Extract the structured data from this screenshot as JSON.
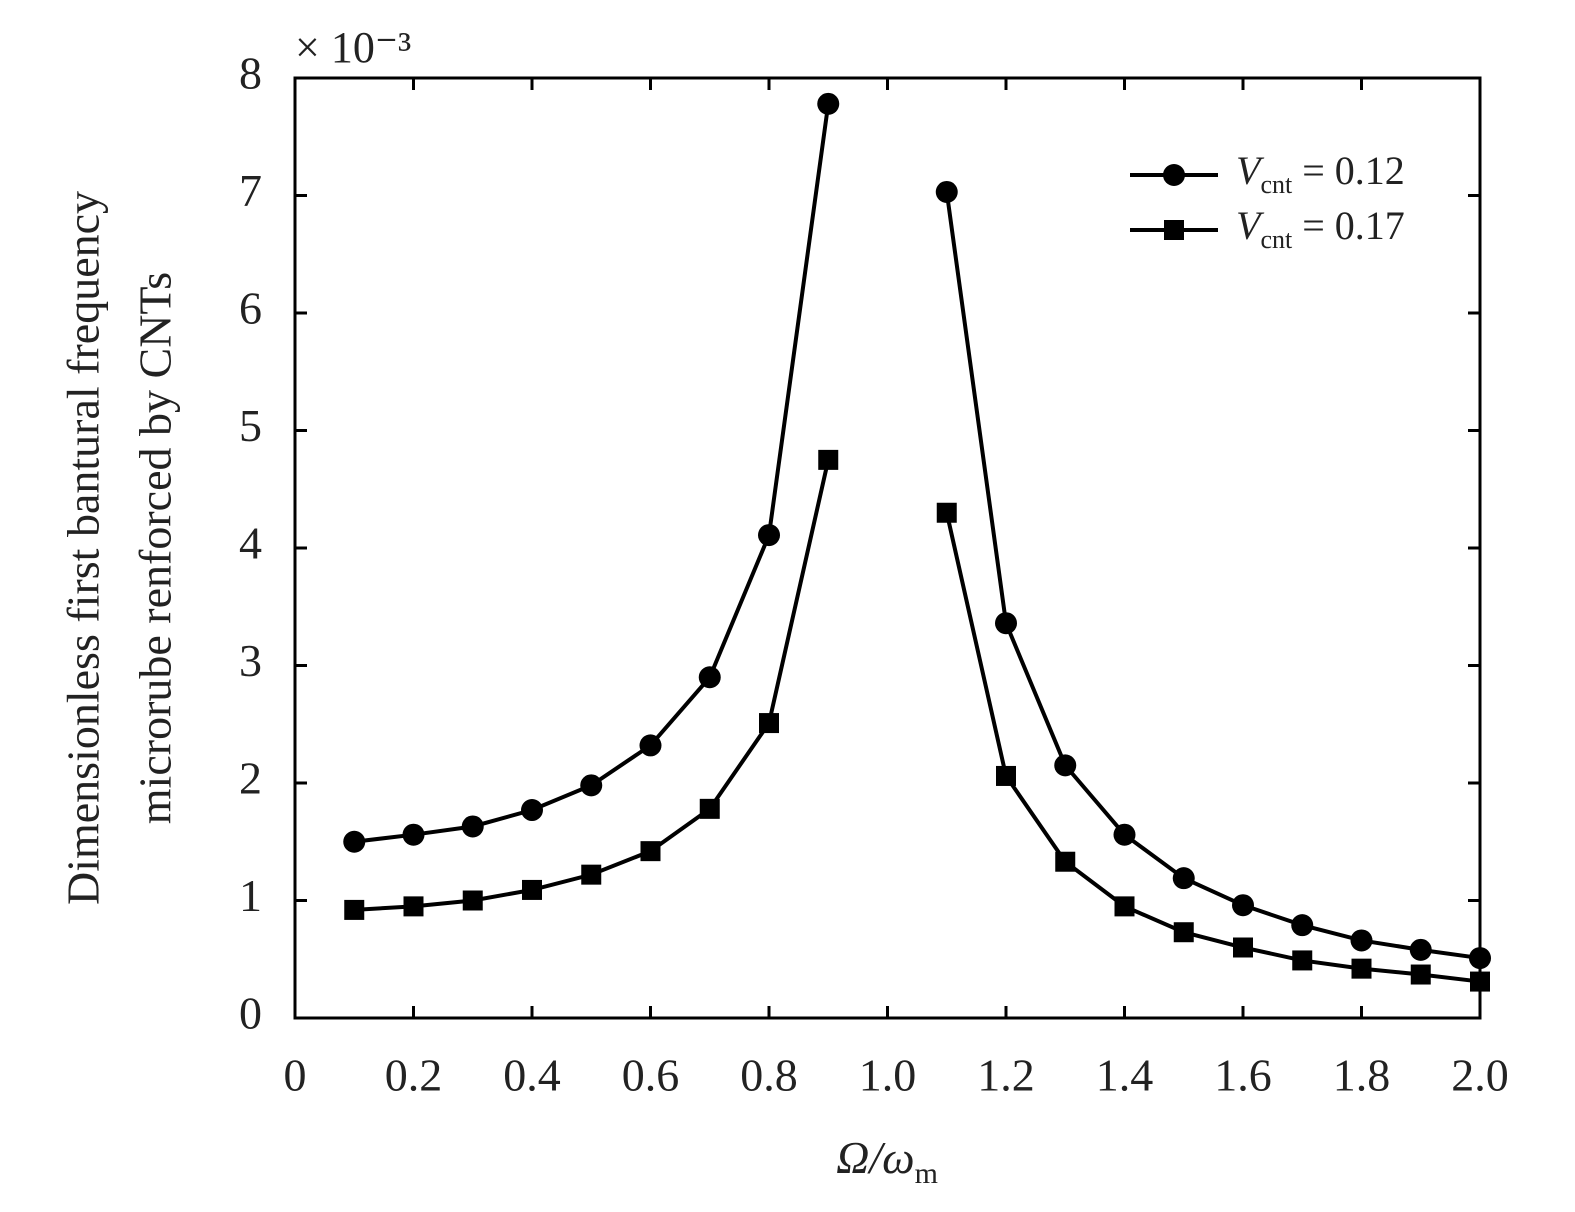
{
  "chart_data": {
    "type": "line",
    "multiplier": "× 10⁻³",
    "ylabel": [
      "Dimensionless first bantural frequency",
      "microrube renforced by CNTs"
    ],
    "xlabel": {
      "main": "Ω/ω",
      "sub": "m"
    },
    "x": [
      0.1,
      0.2,
      0.3,
      0.4,
      0.5,
      0.6,
      0.7,
      0.8,
      0.9,
      1.0,
      1.1,
      1.2,
      1.3,
      1.4,
      1.5,
      1.6,
      1.7,
      1.8,
      1.9,
      2.0
    ],
    "series": [
      {
        "name": {
          "symbol": "V",
          "sub": "cnt",
          "text": "= 0.12"
        },
        "color": "#000000",
        "marker": "circle",
        "values": [
          1.5,
          1.56,
          1.63,
          1.77,
          1.98,
          2.32,
          2.9,
          4.11,
          7.78,
          null,
          7.03,
          3.36,
          2.15,
          1.56,
          1.19,
          0.96,
          0.79,
          0.66,
          0.58,
          0.51
        ]
      },
      {
        "name": {
          "symbol": "V",
          "sub": "cnt",
          "text": "= 0.17"
        },
        "color": "#000000",
        "marker": "square",
        "values": [
          0.92,
          0.95,
          1.0,
          1.09,
          1.22,
          1.42,
          1.78,
          2.51,
          4.75,
          null,
          4.3,
          2.06,
          1.33,
          0.95,
          0.73,
          0.6,
          0.49,
          0.42,
          0.37,
          0.31
        ]
      }
    ],
    "xlim": [
      0,
      2.0
    ],
    "xticks": [
      0,
      0.2,
      0.4,
      0.6,
      0.8,
      {
        "value": 1,
        "label": "1.0"
      },
      1.2,
      1.4,
      1.6,
      1.8,
      {
        "value": 2,
        "label": "2.0"
      }
    ],
    "ylim": [
      0,
      8
    ],
    "yticks": [
      0,
      1,
      2,
      3,
      4,
      5,
      6,
      7,
      8
    ],
    "grid": false,
    "legend": "upper-right"
  }
}
